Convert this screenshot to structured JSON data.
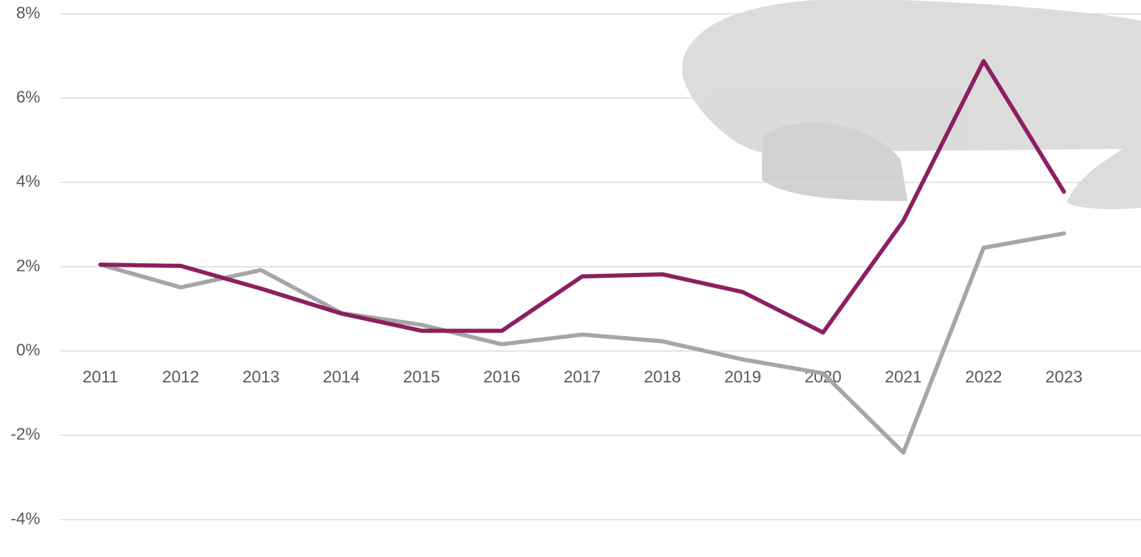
{
  "chart_data": {
    "type": "line",
    "categories": [
      "2011",
      "2012",
      "2013",
      "2014",
      "2015",
      "2016",
      "2017",
      "2018",
      "2019",
      "2020",
      "2021",
      "2022",
      "2023"
    ],
    "series": [
      {
        "color": "#a6a6a6",
        "values": [
          2.05,
          1.51,
          1.92,
          0.9,
          0.62,
          0.16,
          0.39,
          0.23,
          -0.2,
          -0.53,
          -2.41,
          2.45,
          2.79
        ]
      },
      {
        "color": "#8b2060",
        "values": [
          2.05,
          2.02,
          1.48,
          0.89,
          0.48,
          0.48,
          1.77,
          1.82,
          1.4,
          0.44,
          3.09,
          6.88,
          3.78
        ]
      }
    ],
    "ylim": [
      -4,
      8
    ],
    "yticks": [
      {
        "value": -4,
        "label": "-4%"
      },
      {
        "value": -2,
        "label": "-2%"
      },
      {
        "value": 0,
        "label": "0%"
      },
      {
        "value": 2,
        "label": "2%"
      },
      {
        "value": 4,
        "label": "4%"
      },
      {
        "value": 6,
        "label": "6%"
      },
      {
        "value": 8,
        "label": "8%"
      }
    ],
    "grid": true
  }
}
